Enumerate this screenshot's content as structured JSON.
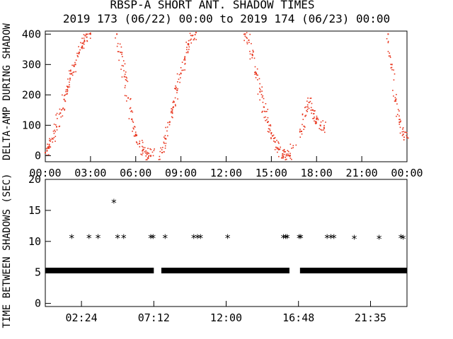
{
  "chart_data": [
    {
      "type": "scatter",
      "title": "RBSP-A SHORT ANT. SHADOW TIMES",
      "subtitle": "2019 173 (06/22) 00:00 to 2019 174 (06/23) 00:00",
      "ylabel": "DELTA-AMP DURING SHADOW",
      "ylim": [
        -20,
        410
      ],
      "yticks": [
        "0",
        "100",
        "200",
        "300",
        "400"
      ],
      "xlim": [
        0,
        24
      ],
      "xticks": [
        "00:00",
        "03:00",
        "06:00",
        "09:00",
        "12:00",
        "15:00",
        "18:00",
        "21:00",
        "00:00"
      ],
      "grid": false,
      "color": "#e8341c",
      "series": [
        {
          "values_description": "hour-of-day vs delta amplitude, dense dotted bands",
          "x": [
            0.0,
            0.25,
            0.5,
            0.75,
            1.0,
            1.25,
            1.5,
            1.75,
            2.0,
            2.25,
            2.5,
            2.75,
            3.0,
            4.75,
            5.0,
            5.25,
            5.5,
            5.75,
            6.0,
            6.25,
            6.5,
            6.75,
            7.0,
            7.75,
            8.0,
            8.25,
            8.5,
            8.75,
            9.0,
            9.25,
            9.5,
            9.75,
            10.0,
            13.25,
            13.5,
            13.75,
            14.0,
            14.25,
            14.5,
            14.75,
            15.0,
            15.25,
            15.5,
            15.75,
            16.0,
            16.25,
            17.0,
            17.25,
            17.5,
            17.75,
            18.0,
            18.25,
            18.5,
            22.75,
            23.0,
            23.25,
            23.5,
            23.75,
            24.0
          ],
          "y": [
            10,
            25,
            55,
            95,
            140,
            185,
            225,
            270,
            300,
            340,
            370,
            390,
            400,
            400,
            340,
            260,
            190,
            120,
            70,
            40,
            20,
            5,
            0,
            10,
            55,
            110,
            160,
            215,
            270,
            320,
            365,
            395,
            405,
            400,
            380,
            330,
            270,
            210,
            160,
            110,
            75,
            45,
            20,
            5,
            0,
            0,
            80,
            130,
            175,
            150,
            120,
            100,
            90,
            400,
            300,
            180,
            110,
            70,
            60
          ]
        }
      ]
    },
    {
      "type": "scatter",
      "title": "",
      "ylabel": "TIME BETWEEN SHADOWS (SEC)",
      "ylim": [
        -0.5,
        20
      ],
      "yticks": [
        "0",
        "5",
        "10",
        "15",
        "20"
      ],
      "xlim": [
        0,
        24
      ],
      "xticks": [
        "02:24",
        "07:12",
        "12:00",
        "16:48",
        "21:35"
      ],
      "xtick_positions": [
        2.4,
        7.2,
        12.0,
        16.8,
        21.58
      ],
      "marker": "asterisk",
      "base_level": 5.3,
      "base_segments": [
        [
          0.0,
          7.2
        ],
        [
          7.7,
          16.2
        ],
        [
          16.9,
          24.0
        ]
      ],
      "series": [
        {
          "name": "",
          "x": [
            1.75,
            2.9,
            3.5,
            4.55,
            4.8,
            5.2,
            7.0,
            7.15,
            7.95,
            9.85,
            10.1,
            10.3,
            12.1,
            15.8,
            15.95,
            16.05,
            16.85,
            16.95,
            18.7,
            18.95,
            19.15,
            20.5,
            22.15,
            23.6,
            23.75
          ],
          "y": [
            10.6,
            10.6,
            10.6,
            16.3,
            10.6,
            10.6,
            10.6,
            10.6,
            10.6,
            10.6,
            10.6,
            10.6,
            10.6,
            10.6,
            10.6,
            10.6,
            10.6,
            10.6,
            10.6,
            10.6,
            10.6,
            10.5,
            10.5,
            10.6,
            10.5
          ]
        }
      ]
    }
  ]
}
